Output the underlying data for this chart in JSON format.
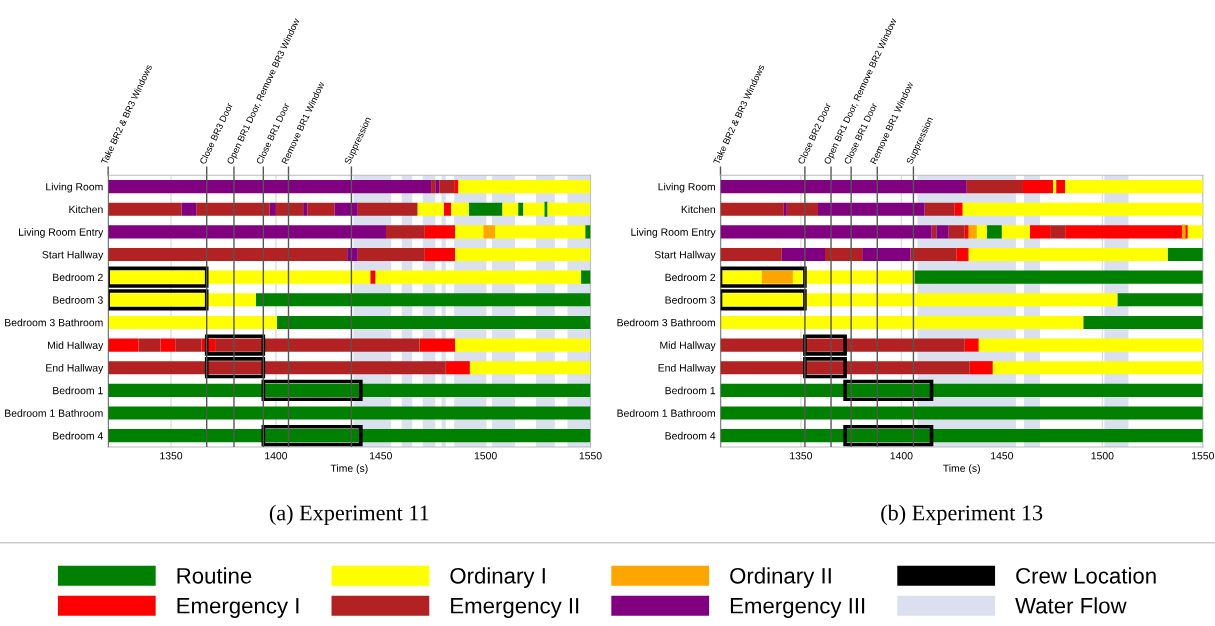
{
  "chart_data": [
    {
      "type": "bar",
      "orientation": "horizontal",
      "title": "(a) Experiment 11",
      "xlabel": "Time (s)",
      "categories": [
        "Living Room",
        "Kitchen",
        "Living Room Entry",
        "Start Hallway",
        "Bedroom 2",
        "Bedroom 3",
        "Bedroom 3 Bathroom",
        "Mid Hallway",
        "End Hallway",
        "Bedroom 1",
        "Bedroom 1 Bathroom",
        "Bedroom 4"
      ],
      "xlim": [
        1320,
        1550
      ],
      "xticks": [
        1350,
        1400,
        1450,
        1500,
        1550
      ],
      "grid": "x",
      "legend": "bottom",
      "series": [
        {
          "name": "Routine",
          "color": "#008000",
          "base": [
            null,
            1492,
            1547.5,
            null,
            1545.5,
            1390.5,
            1400.5,
            null,
            null,
            1320,
            1320,
            1320
          ],
          "values": [
            null,
            16,
            2.5,
            null,
            4.5,
            159.5,
            149.5,
            null,
            null,
            230,
            230,
            230
          ]
        },
        {
          "color": "#008000",
          "base": [
            null,
            1515.5,
            null,
            null,
            null,
            null,
            null,
            null,
            null,
            null,
            null,
            null
          ],
          "values": [
            null,
            2.5,
            null,
            null,
            null,
            null,
            null,
            null,
            null,
            null,
            null,
            null
          ]
        },
        {
          "color": "#008000",
          "base": [
            null,
            1528.5,
            null,
            null,
            null,
            null,
            null,
            null,
            null,
            null,
            null,
            null
          ],
          "values": [
            null,
            0.5,
            null,
            null,
            null,
            null,
            null,
            null,
            null,
            null,
            null,
            null
          ]
        },
        {
          "name": "Emergency I",
          "color": "#ff0000",
          "base": [
            1485,
            1480,
            1471,
            1471,
            1445,
            null,
            null,
            1320,
            1481,
            null,
            null,
            null
          ],
          "values": [
            2,
            3.5,
            14.5,
            14.5,
            2.5,
            null,
            null,
            14.5,
            11.5,
            null,
            null,
            null
          ]
        },
        {
          "color": "#ff0000",
          "base": [
            null,
            null,
            null,
            null,
            null,
            null,
            null,
            1345,
            null,
            null,
            null,
            null
          ],
          "values": [
            null,
            null,
            null,
            null,
            null,
            null,
            null,
            7,
            null,
            null,
            null,
            null
          ]
        },
        {
          "color": "#ff0000",
          "base": [
            null,
            null,
            null,
            null,
            null,
            null,
            null,
            1364.5,
            null,
            null,
            null,
            null
          ],
          "values": [
            null,
            null,
            null,
            null,
            null,
            null,
            null,
            6.5,
            null,
            null,
            null,
            null
          ]
        },
        {
          "color": "#ff0000",
          "base": [
            null,
            null,
            null,
            null,
            null,
            null,
            null,
            1468.5,
            null,
            null,
            null,
            null
          ],
          "values": [
            null,
            null,
            null,
            null,
            null,
            null,
            null,
            17,
            null,
            null,
            null,
            null
          ]
        },
        {
          "name": "Ordinary I",
          "color": "#ffff00",
          "base": [
            1487,
            1467.5,
            1485.5,
            1485.5,
            1320,
            1320,
            1320,
            1485.5,
            1492.5,
            null,
            null,
            null
          ],
          "values": [
            63,
            12.5,
            13.5,
            64.5,
            125,
            70.5,
            80.5,
            64.5,
            57.5,
            null,
            null,
            null
          ]
        },
        {
          "color": "#ffff00",
          "base": [
            null,
            1483.5,
            1504.5,
            null,
            1447.5,
            null,
            null,
            null,
            null,
            null,
            null,
            null
          ],
          "values": [
            null,
            8.5,
            43,
            null,
            98,
            null,
            null,
            null,
            null,
            null,
            null,
            null
          ]
        },
        {
          "color": "#ffff00",
          "base": [
            null,
            1508,
            null,
            null,
            null,
            null,
            null,
            null,
            null,
            null,
            null,
            null
          ],
          "values": [
            null,
            7.5,
            null,
            null,
            null,
            null,
            null,
            null,
            null,
            null,
            null,
            null
          ]
        },
        {
          "color": "#ffff00",
          "base": [
            null,
            1518,
            null,
            null,
            null,
            null,
            null,
            null,
            null,
            null,
            null,
            null
          ],
          "values": [
            null,
            10.5,
            null,
            null,
            null,
            null,
            null,
            null,
            null,
            null,
            null,
            null
          ]
        },
        {
          "color": "#ffff00",
          "base": [
            null,
            1529,
            null,
            null,
            null,
            null,
            null,
            null,
            null,
            null,
            null,
            null
          ],
          "values": [
            null,
            21,
            null,
            null,
            null,
            null,
            null,
            null,
            null,
            null,
            null,
            null
          ]
        },
        {
          "name": "Emergency II",
          "color": "#b22222",
          "base": [
            1474,
            1320,
            1452.5,
            1320,
            null,
            null,
            null,
            1334.5,
            1320,
            null,
            null,
            null
          ],
          "values": [
            2,
            35,
            18.5,
            114,
            null,
            null,
            null,
            10.5,
            161,
            null,
            null,
            null
          ]
        },
        {
          "color": "#b22222",
          "base": [
            1478,
            1362,
            null,
            1439,
            null,
            null,
            null,
            1352,
            null,
            null,
            null,
            null
          ],
          "values": [
            7,
            35,
            null,
            32,
            null,
            null,
            null,
            12.5,
            null,
            null,
            null,
            null
          ]
        },
        {
          "color": "#b22222",
          "base": [
            null,
            1400,
            null,
            null,
            null,
            null,
            null,
            1371,
            null,
            null,
            null,
            null
          ],
          "values": [
            null,
            13,
            null,
            null,
            null,
            null,
            null,
            97.5,
            null,
            null,
            null,
            null
          ]
        },
        {
          "color": "#b22222",
          "base": [
            null,
            1415,
            null,
            null,
            null,
            null,
            null,
            null,
            null,
            null,
            null,
            null
          ],
          "values": [
            null,
            13,
            null,
            null,
            null,
            null,
            null,
            null,
            null,
            null,
            null,
            null
          ]
        },
        {
          "color": "#b22222",
          "base": [
            null,
            1439,
            null,
            null,
            null,
            null,
            null,
            null,
            null,
            null,
            null,
            null
          ],
          "values": [
            null,
            28.5,
            null,
            null,
            null,
            null,
            null,
            null,
            null,
            null,
            null,
            null
          ]
        },
        {
          "name": "Ordinary II",
          "color": "#ffa500",
          "base": [
            null,
            null,
            1499,
            null,
            null,
            null,
            null,
            null,
            null,
            null,
            null,
            null
          ],
          "values": [
            null,
            null,
            5.5,
            null,
            null,
            null,
            null,
            null,
            null,
            null,
            null,
            null
          ]
        },
        {
          "name": "Emergency III",
          "color": "#800080",
          "base": [
            1320,
            1355,
            1320,
            1434,
            null,
            null,
            null,
            null,
            null,
            null,
            null,
            null
          ],
          "values": [
            154,
            7,
            132.5,
            5,
            null,
            null,
            null,
            null,
            null,
            null,
            null,
            null
          ]
        },
        {
          "color": "#800080",
          "base": [
            1476,
            1397,
            null,
            null,
            null,
            null,
            null,
            null,
            null,
            null,
            null,
            null
          ],
          "values": [
            2,
            3,
            null,
            null,
            null,
            null,
            null,
            null,
            null,
            null,
            null,
            null
          ]
        },
        {
          "color": "#800080",
          "base": [
            null,
            1413,
            null,
            null,
            null,
            null,
            null,
            null,
            null,
            null,
            null,
            null
          ],
          "values": [
            null,
            2,
            null,
            null,
            null,
            null,
            null,
            null,
            null,
            null,
            null,
            null
          ]
        },
        {
          "color": "#800080",
          "base": [
            null,
            1428,
            null,
            null,
            null,
            null,
            null,
            null,
            null,
            null,
            null,
            null
          ],
          "values": [
            null,
            11,
            null,
            null,
            null,
            null,
            null,
            null,
            null,
            null,
            null,
            null
          ]
        },
        {
          "name": "Crew Location",
          "color": "#000000",
          "line_style": "solid",
          "base": [
            null,
            null,
            null,
            null,
            1320,
            1320,
            null,
            1367,
            1367,
            1394,
            null,
            1394
          ],
          "values": [
            null,
            null,
            null,
            null,
            47,
            47,
            null,
            27,
            27,
            46.5,
            null,
            46.5
          ]
        }
      ],
      "ref_lines": [
        {
          "axis": "x",
          "value": 1320,
          "label": "Take BR2 & BR3 Windows"
        },
        {
          "axis": "x",
          "value": 1367,
          "label": "Close BR3 Door"
        },
        {
          "axis": "x",
          "value": 1380,
          "label": "Open BR1 Door, Remove BR3 Window"
        },
        {
          "axis": "x",
          "value": 1394,
          "label": "Close BR1 Door"
        },
        {
          "axis": "x",
          "value": 1406,
          "label": "Remove BR1 Window"
        },
        {
          "axis": "x",
          "value": 1436,
          "label": "Suppression"
        }
      ],
      "bands": [
        {
          "axis": "x",
          "from": 1437,
          "to": 1455,
          "label": "Water Flow",
          "color": "#dae0ee"
        },
        {
          "axis": "x",
          "from": 1460,
          "to": 1465,
          "color": "#dae0ee"
        },
        {
          "axis": "x",
          "from": 1470,
          "to": 1476,
          "color": "#dae0ee"
        },
        {
          "axis": "x",
          "from": 1479,
          "to": 1481,
          "color": "#dae0ee"
        },
        {
          "axis": "x",
          "from": 1485,
          "to": 1500,
          "color": "#dae0ee"
        },
        {
          "axis": "x",
          "from": 1503,
          "to": 1514,
          "color": "#dae0ee"
        },
        {
          "axis": "x",
          "from": 1524,
          "to": 1533,
          "color": "#dae0ee"
        },
        {
          "axis": "x",
          "from": 1539,
          "to": 1550,
          "color": "#dae0ee"
        }
      ]
    },
    {
      "type": "bar",
      "orientation": "horizontal",
      "title": "(b) Experiment 13",
      "xlabel": "Time (s)",
      "categories": [
        "Living Room",
        "Kitchen",
        "Living Room Entry",
        "Start Hallway",
        "Bedroom 2",
        "Bedroom 3",
        "Bedroom 3 Bathroom",
        "Mid Hallway",
        "End Hallway",
        "Bedroom 1",
        "Bedroom 1 Bathroom",
        "Bedroom 4"
      ],
      "xlim": [
        1310,
        1550
      ],
      "xticks": [
        1350,
        1400,
        1450,
        1500,
        1550
      ],
      "grid": "x",
      "series": [
        {
          "name": "Routine",
          "color": "#008000",
          "base": [
            null,
            null,
            1442.5,
            1532.5,
            1406.5,
            1507.5,
            1490.5,
            null,
            null,
            1310,
            1310,
            1310
          ],
          "values": [
            null,
            null,
            7.5,
            17.5,
            143.5,
            42.5,
            59.5,
            null,
            null,
            240,
            240,
            240
          ]
        },
        {
          "name": "Emergency I",
          "color": "#ff0000",
          "base": [
            1460.5,
            1426.5,
            1431.5,
            1427.5,
            null,
            null,
            null,
            1431.5,
            1434,
            null,
            null,
            null
          ],
          "values": [
            15,
            4,
            2,
            6,
            null,
            null,
            null,
            7,
            11.5,
            null,
            null,
            null
          ]
        },
        {
          "color": "#ff0000",
          "base": [
            1477,
            null,
            1464,
            null,
            null,
            null,
            null,
            null,
            null,
            null,
            null,
            null
          ],
          "values": [
            4.5,
            null,
            10,
            null,
            null,
            null,
            null,
            null,
            null,
            null,
            null,
            null
          ]
        },
        {
          "color": "#ff0000",
          "base": [
            null,
            null,
            1481.5,
            null,
            null,
            null,
            null,
            null,
            null,
            null,
            null,
            null
          ],
          "values": [
            null,
            null,
            58.5,
            null,
            null,
            null,
            null,
            null,
            null,
            null,
            null,
            null
          ]
        },
        {
          "color": "#ff0000",
          "base": [
            null,
            null,
            1541,
            null,
            null,
            null,
            null,
            null,
            null,
            null,
            null,
            null
          ],
          "values": [
            null,
            null,
            1.5,
            null,
            null,
            null,
            null,
            null,
            null,
            null,
            null,
            null
          ]
        },
        {
          "name": "Ordinary I",
          "color": "#ffff00",
          "base": [
            1475.5,
            1430.5,
            1437.5,
            1433.5,
            1310,
            1310,
            1310,
            1438.5,
            1445.5,
            null,
            null,
            null
          ],
          "values": [
            1.5,
            119.5,
            5,
            99,
            20.5,
            197.5,
            180.5,
            111.5,
            104.5,
            null,
            null,
            null
          ]
        },
        {
          "color": "#ffff00",
          "base": [
            1481.5,
            null,
            1450,
            null,
            1346,
            null,
            null,
            null,
            null,
            null,
            null,
            null
          ],
          "values": [
            68.5,
            null,
            14,
            null,
            60.5,
            null,
            null,
            null,
            null,
            null,
            null,
            null
          ]
        },
        {
          "color": "#ffff00",
          "base": [
            null,
            null,
            1542.5,
            null,
            null,
            null,
            null,
            null,
            null,
            null,
            null,
            null
          ],
          "values": [
            null,
            null,
            7.5,
            null,
            null,
            null,
            null,
            null,
            null,
            null,
            null,
            null
          ]
        },
        {
          "name": "Emergency II",
          "color": "#b22222",
          "base": [
            1432.5,
            1310,
            1415,
            1310,
            null,
            null,
            null,
            1310,
            1310,
            null,
            null,
            null
          ],
          "values": [
            28,
            31.5,
            2.5,
            30.5,
            null,
            null,
            null,
            121.5,
            124,
            null,
            null,
            null
          ]
        },
        {
          "color": "#b22222",
          "base": [
            null,
            1343,
            1423.5,
            1362,
            null,
            null,
            null,
            null,
            null,
            null,
            null,
            null
          ],
          "values": [
            null,
            15.5,
            8,
            18.5,
            null,
            null,
            null,
            null,
            null,
            null,
            null,
            null
          ]
        },
        {
          "color": "#b22222",
          "base": [
            null,
            1411.5,
            1474,
            1404.5,
            null,
            null,
            null,
            null,
            null,
            null,
            null,
            null
          ],
          "values": [
            null,
            15,
            7.5,
            23,
            null,
            null,
            null,
            null,
            null,
            null,
            null,
            null
          ]
        },
        {
          "name": "Ordinary II",
          "color": "#ffa500",
          "base": [
            null,
            null,
            1433.5,
            null,
            1330.5,
            null,
            null,
            null,
            null,
            null,
            null,
            null
          ],
          "values": [
            null,
            null,
            4,
            null,
            15.5,
            null,
            null,
            null,
            null,
            null,
            null,
            null
          ]
        },
        {
          "color": "#ffa500",
          "base": [
            null,
            null,
            1540,
            null,
            null,
            null,
            null,
            null,
            null,
            null,
            null,
            null
          ],
          "values": [
            null,
            null,
            1,
            null,
            null,
            null,
            null,
            null,
            null,
            null,
            null,
            null
          ]
        },
        {
          "name": "Emergency III",
          "color": "#800080",
          "base": [
            1310,
            1341.5,
            1310,
            1340.5,
            null,
            null,
            null,
            null,
            null,
            null,
            null,
            null
          ],
          "values": [
            122.5,
            1.5,
            105,
            21.5,
            null,
            null,
            null,
            null,
            null,
            null,
            null,
            null
          ]
        },
        {
          "color": "#800080",
          "base": [
            null,
            1358.5,
            1417.5,
            1380.5,
            null,
            null,
            null,
            null,
            null,
            null,
            null,
            null
          ],
          "values": [
            null,
            53,
            6,
            24,
            null,
            null,
            null,
            null,
            null,
            null,
            null,
            null
          ]
        },
        {
          "name": "Crew Location",
          "color": "#000000",
          "line_style": "solid",
          "base": [
            null,
            null,
            null,
            null,
            1310,
            1310,
            null,
            1352,
            1352,
            1372,
            null,
            1372
          ],
          "values": [
            null,
            null,
            null,
            null,
            42,
            42,
            null,
            20,
            20,
            43,
            null,
            43
          ]
        }
      ],
      "ref_lines": [
        {
          "axis": "x",
          "value": 1310,
          "label": "Take BR2 & BR3 Windows"
        },
        {
          "axis": "x",
          "value": 1352,
          "label": "Close BR2 Door"
        },
        {
          "axis": "x",
          "value": 1365,
          "label": "Open BR1 Door, Remove BR2 Window"
        },
        {
          "axis": "x",
          "value": 1375,
          "label": "Close BR1 Door"
        },
        {
          "axis": "x",
          "value": 1388,
          "label": "Remove BR1 Window"
        },
        {
          "axis": "x",
          "value": 1406,
          "label": "Suppression"
        }
      ],
      "bands": [
        {
          "axis": "x",
          "from": 1408,
          "to": 1457,
          "color": "#dae0ee"
        },
        {
          "axis": "x",
          "from": 1461,
          "to": 1469,
          "color": "#dae0ee"
        },
        {
          "axis": "x",
          "from": 1501,
          "to": 1513,
          "color": "#dae0ee"
        }
      ]
    }
  ]
}
